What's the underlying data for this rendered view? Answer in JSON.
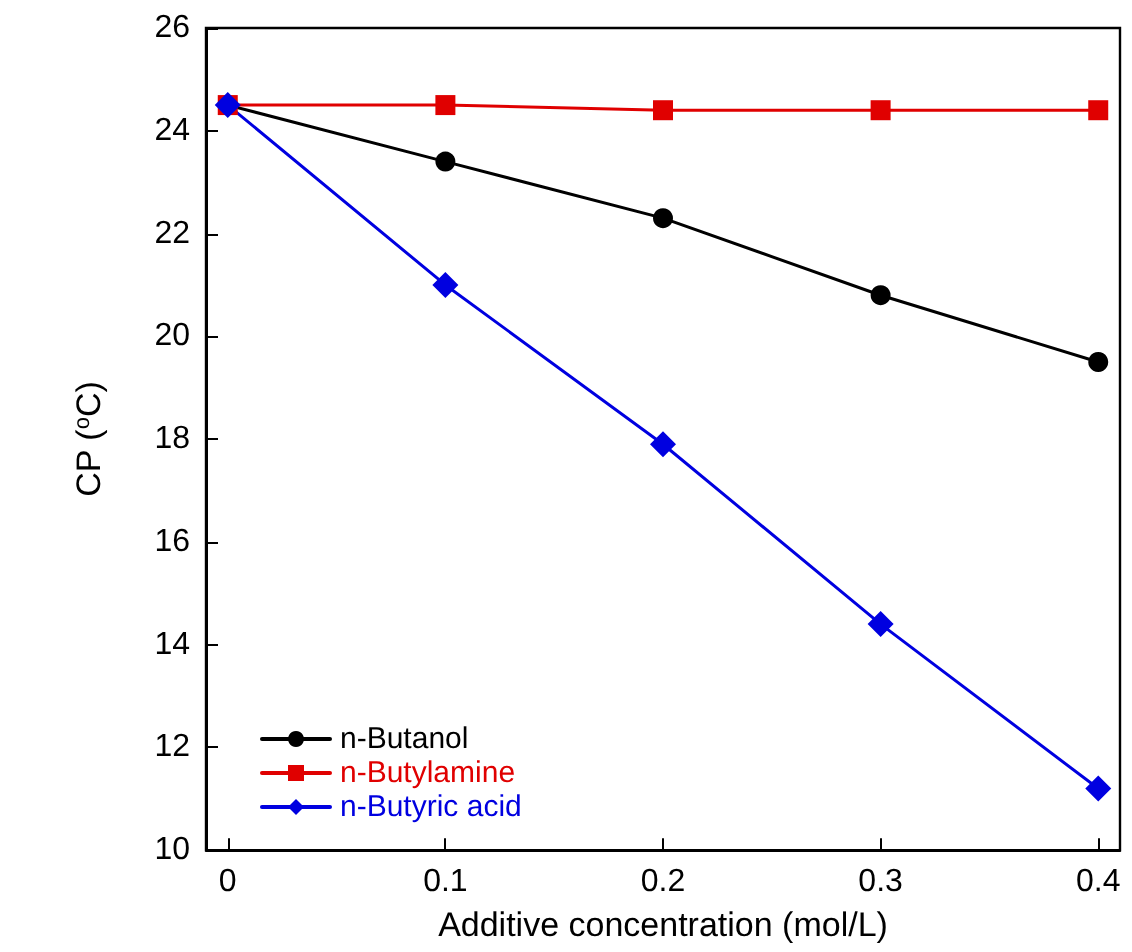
{
  "chart_data": {
    "type": "line",
    "xlabel": "Additive concentration (mol/L)",
    "ylabel": "CP ($^{o}$C)",
    "x": [
      0,
      0.1,
      0.2,
      0.3,
      0.4
    ],
    "series": [
      {
        "name": "n-Butanol",
        "color": "#000000",
        "marker": "circle",
        "values": [
          24.5,
          23.4,
          22.3,
          20.8,
          19.5
        ]
      },
      {
        "name": "n-Butylamine",
        "color": "#e00000",
        "marker": "square",
        "values": [
          24.5,
          24.5,
          24.4,
          24.4,
          24.4
        ]
      },
      {
        "name": "n-Butyric acid",
        "color": "#0000e0",
        "marker": "diamond",
        "values": [
          24.5,
          21.0,
          17.9,
          14.4,
          11.2
        ]
      }
    ],
    "xlim": [
      -0.01,
      0.41
    ],
    "xticks": [
      0,
      0.1,
      0.2,
      0.3,
      0.4
    ],
    "ylim": [
      10,
      26
    ],
    "yticks": [
      10,
      12,
      14,
      16,
      18,
      20,
      22,
      24,
      26
    ],
    "grid": false,
    "legend": "bottom left",
    "line_style": "solid"
  }
}
